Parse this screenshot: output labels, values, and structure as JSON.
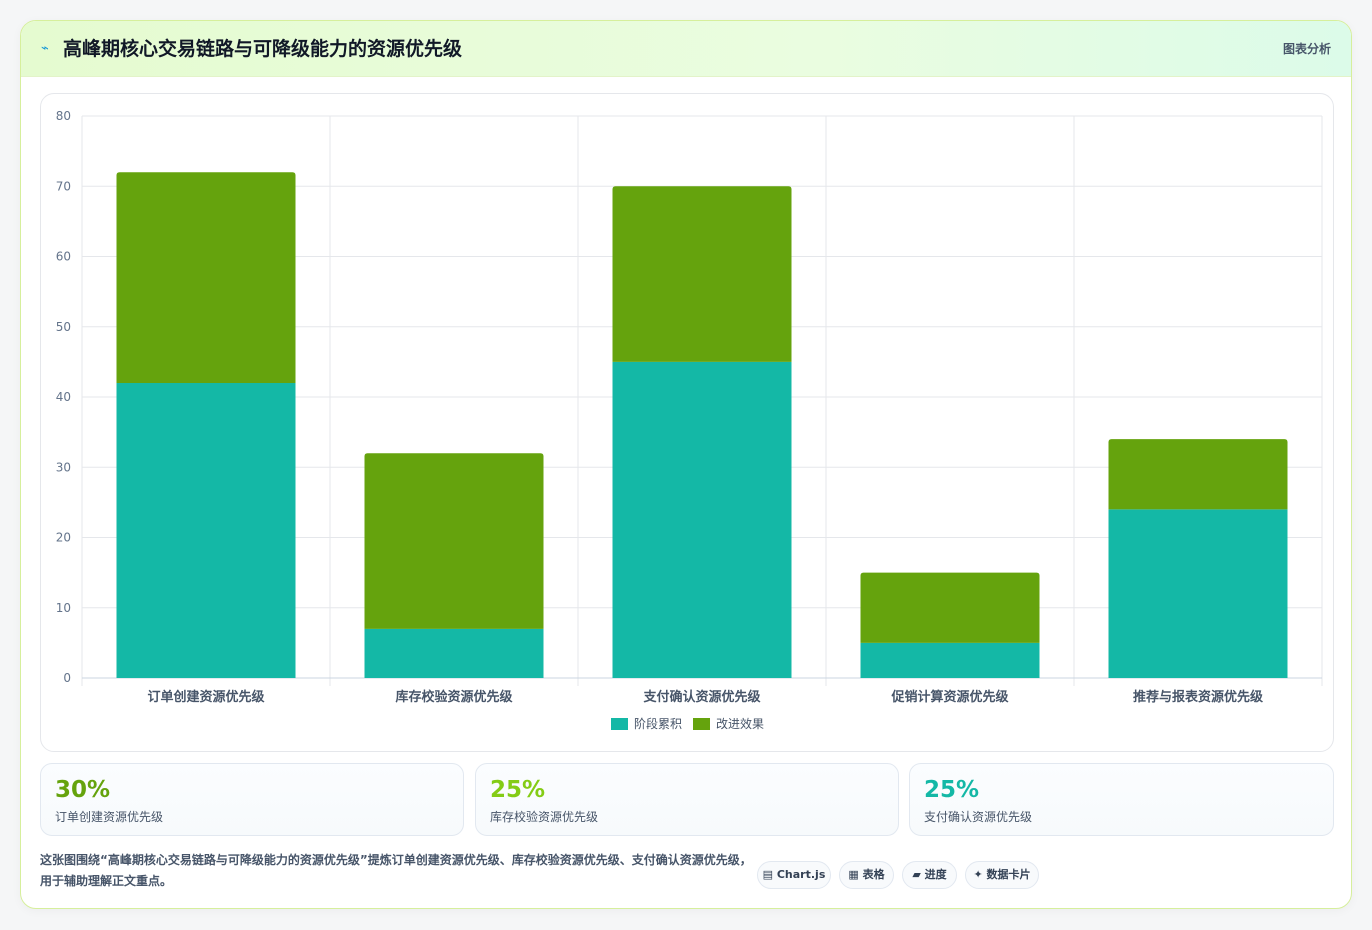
{
  "header": {
    "icon": "wave-icon",
    "title": "高峰期核心交易链路与可降级能力的资源优先级",
    "tag": "图表分析"
  },
  "chart_data": {
    "type": "bar",
    "stacked": true,
    "categories": [
      "订单创建资源优先级",
      "库存校验资源优先级",
      "支付确认资源优先级",
      "促销计算资源优先级",
      "推荐与报表资源优先级"
    ],
    "series": [
      {
        "name": "阶段累积",
        "color": "#14b8a6",
        "values": [
          42,
          7,
          45,
          5,
          24
        ]
      },
      {
        "name": "改进效果",
        "color": "#65a30d",
        "values": [
          30,
          25,
          25,
          10,
          10
        ]
      }
    ],
    "ylim": [
      0,
      80
    ],
    "yticks": [
      0,
      10,
      20,
      30,
      40,
      50,
      60,
      70,
      80
    ],
    "grid": true,
    "legend": "bottom"
  },
  "stats": [
    {
      "value": "30%",
      "label": "订单创建资源优先级",
      "color": "#65a30d"
    },
    {
      "value": "25%",
      "label": "库存校验资源优先级",
      "color": "#84cc16"
    },
    {
      "value": "25%",
      "label": "支付确认资源优先级",
      "color": "#14b8a6"
    }
  ],
  "description": "这张图围绕“高峰期核心交易链路与可降级能力的资源优先级”提炼订单创建资源优先级、库存校验资源优先级、支付确认资源优先级，用于辅助理解正文重点。",
  "pills": [
    {
      "icon": "chart-icon",
      "glyph": "▤",
      "label": "Chart.js"
    },
    {
      "icon": "table-icon",
      "glyph": "▦",
      "label": "表格"
    },
    {
      "icon": "progress-icon",
      "glyph": "▰",
      "label": "进度"
    },
    {
      "icon": "sparkle-icon",
      "glyph": "✦",
      "label": "数据卡片"
    }
  ]
}
